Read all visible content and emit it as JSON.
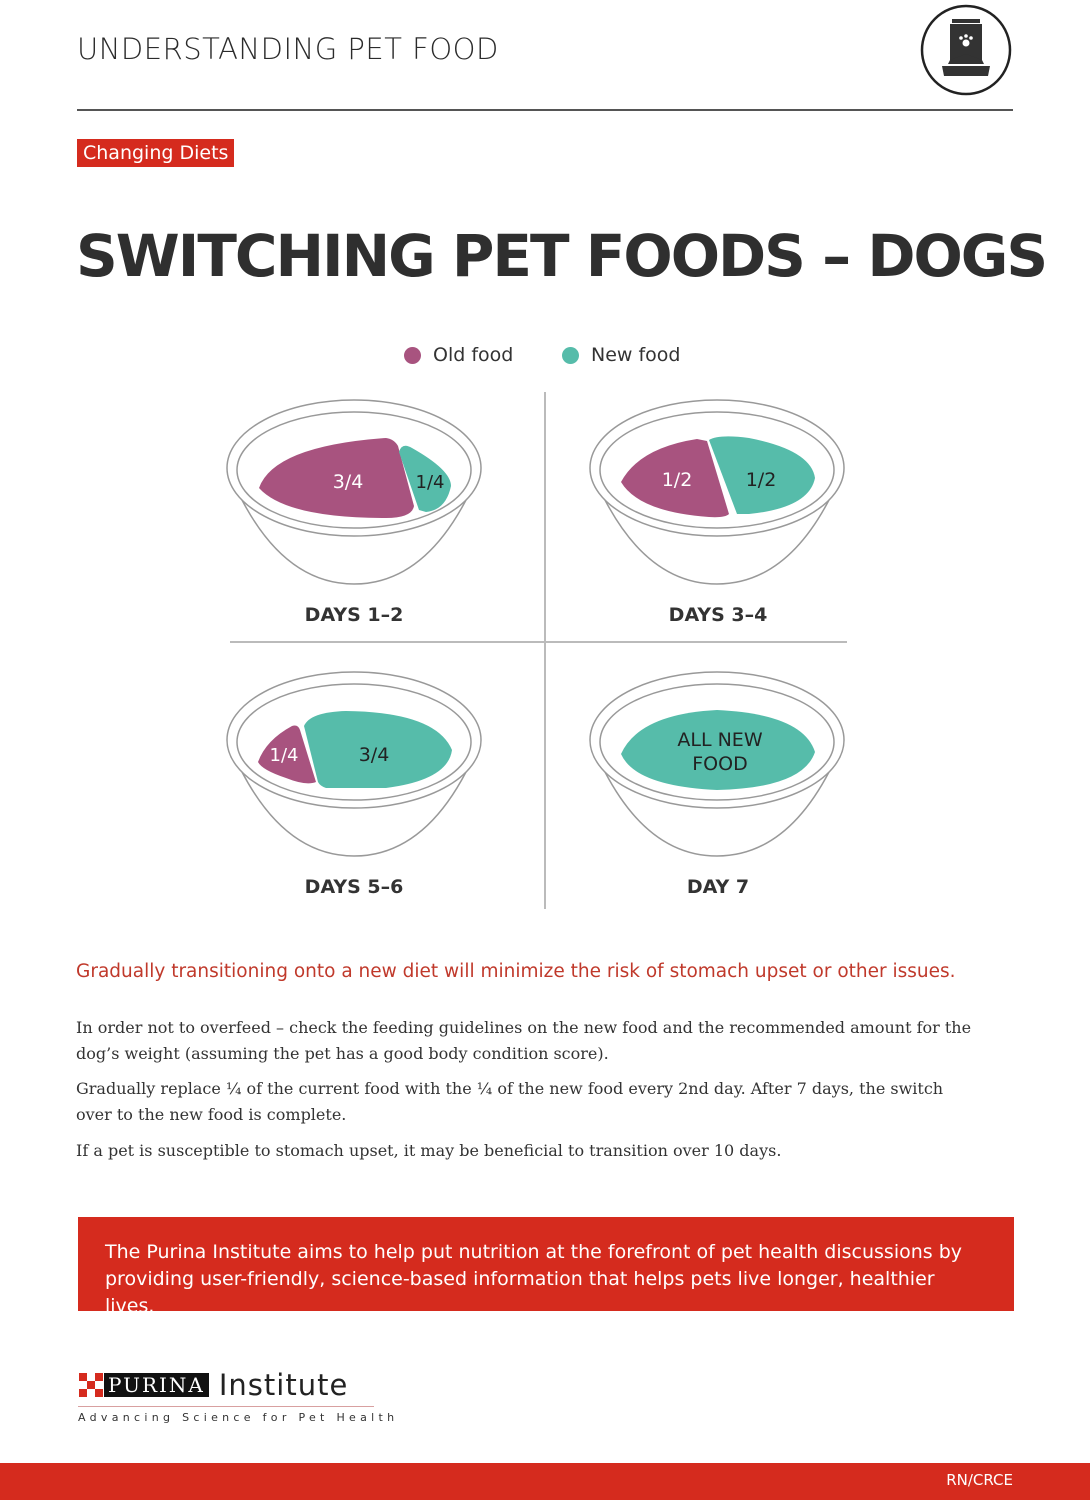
{
  "header": {
    "section": "UNDERSTANDING PET FOOD",
    "tag": "Changing Diets",
    "title": "SWITCHING PET FOODS – DOGS"
  },
  "legend": {
    "old": "Old food",
    "new": "New food"
  },
  "colors": {
    "old": "#a8537f",
    "new": "#56bcaa",
    "accent": "#d52b1e"
  },
  "bowls": [
    {
      "day": "DAYS 1–2",
      "old": "3/4",
      "new": "1/4"
    },
    {
      "day": "DAYS 3–4",
      "old": "1/2",
      "new": "1/2"
    },
    {
      "day": "DAYS 5–6",
      "old": "1/4",
      "new": "3/4"
    },
    {
      "day": "DAY 7",
      "new_line1": "ALL NEW",
      "new_line2": "FOOD"
    }
  ],
  "lead": "Gradually transitioning onto a new diet will minimize the risk of stomach upset or other issues.",
  "paragraphs": [
    "In order not to overfeed – check the feeding guidelines on the new food and the recommended amount for the dog’s weight (assuming the pet has a good body condition score).",
    "Gradually replace ¼ of the current food with the ¼ of the new food every 2nd day. After 7 days, the switch over to the new food is complete.",
    "If a pet is susceptible to stomach upset, it may be beneficial to transition over 10 days."
  ],
  "banner": "The Purina Institute aims to help put nutrition at the forefront of pet health discussions by providing user-friendly, science-based information that helps pets live longer, healthier lives.",
  "brand": {
    "name": "PURINA",
    "sub": "Institute",
    "tagline": "Advancing Science for Pet Health"
  },
  "footer": {
    "code": "RN/CRCE"
  }
}
